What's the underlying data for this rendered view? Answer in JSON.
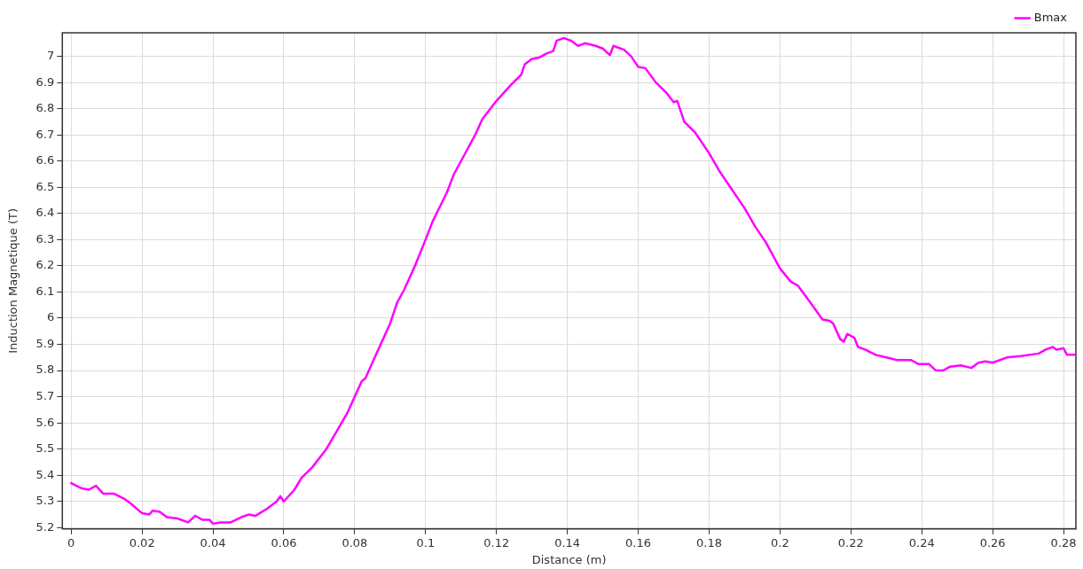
{
  "chart_data": {
    "type": "line",
    "xlabel": "Distance (m)",
    "ylabel": "Induction Magnetique (T)",
    "legend": "top right",
    "grid": true,
    "marker": "none",
    "line_style": "solid",
    "xlim": [
      -0.0025,
      0.2835
    ],
    "ylim": [
      5.195,
      7.09
    ],
    "xticks": [
      0,
      0.02,
      0.04,
      0.06,
      0.08,
      0.1,
      0.12,
      0.14,
      0.16,
      0.18,
      0.2,
      0.22,
      0.24,
      0.26,
      0.28
    ],
    "yticks": [
      5.2,
      5.3,
      5.4,
      5.5,
      5.6,
      5.7,
      5.8,
      5.9,
      6,
      6.1,
      6.2,
      6.3,
      6.4,
      6.5,
      6.6,
      6.7,
      6.8,
      6.9,
      7
    ],
    "x": [
      0,
      0.003,
      0.005,
      0.007,
      0.009,
      0.012,
      0.015,
      0.017,
      0.02,
      0.022,
      0.023,
      0.025,
      0.027,
      0.03,
      0.033,
      0.035,
      0.037,
      0.039,
      0.04,
      0.042,
      0.045,
      0.048,
      0.05,
      0.052,
      0.055,
      0.058,
      0.059,
      0.06,
      0.063,
      0.065,
      0.068,
      0.072,
      0.075,
      0.078,
      0.08,
      0.082,
      0.083,
      0.086,
      0.088,
      0.09,
      0.092,
      0.094,
      0.097,
      0.1,
      0.102,
      0.106,
      0.108,
      0.11,
      0.114,
      0.116,
      0.12,
      0.124,
      0.127,
      0.128,
      0.13,
      0.132,
      0.134,
      0.136,
      0.137,
      0.139,
      0.141,
      0.143,
      0.145,
      0.148,
      0.15,
      0.152,
      0.153,
      0.156,
      0.158,
      0.16,
      0.162,
      0.165,
      0.168,
      0.17,
      0.171,
      0.173,
      0.176,
      0.18,
      0.183,
      0.186,
      0.19,
      0.193,
      0.196,
      0.2,
      0.203,
      0.205,
      0.208,
      0.212,
      0.214,
      0.215,
      0.217,
      0.218,
      0.219,
      0.221,
      0.222,
      0.224,
      0.227,
      0.23,
      0.233,
      0.237,
      0.239,
      0.242,
      0.244,
      0.246,
      0.248,
      0.251,
      0.254,
      0.256,
      0.258,
      0.26,
      0.264,
      0.268,
      0.273,
      0.275,
      0.277,
      0.278,
      0.28,
      0.281,
      0.283
    ],
    "series": [
      {
        "name": "Bmax",
        "color": "#ff00ff",
        "values": [
          5.37,
          5.35,
          5.345,
          5.36,
          5.33,
          5.33,
          5.31,
          5.29,
          5.255,
          5.25,
          5.265,
          5.26,
          5.24,
          5.235,
          5.22,
          5.245,
          5.23,
          5.23,
          5.215,
          5.22,
          5.22,
          5.24,
          5.25,
          5.245,
          5.27,
          5.3,
          5.32,
          5.3,
          5.345,
          5.39,
          5.43,
          5.5,
          5.57,
          5.64,
          5.7,
          5.76,
          5.77,
          5.86,
          5.92,
          5.98,
          6.06,
          6.11,
          6.2,
          6.3,
          6.37,
          6.48,
          6.55,
          6.6,
          6.7,
          6.76,
          6.83,
          6.89,
          6.93,
          6.97,
          6.99,
          6.995,
          7.01,
          7.02,
          7.06,
          7.07,
          7.06,
          7.04,
          7.05,
          7.04,
          7.03,
          7.005,
          7.04,
          7.025,
          7,
          6.96,
          6.955,
          6.9,
          6.86,
          6.825,
          6.83,
          6.75,
          6.71,
          6.63,
          6.56,
          6.5,
          6.42,
          6.35,
          6.29,
          6.19,
          6.14,
          6.125,
          6.07,
          5.995,
          5.99,
          5.98,
          5.92,
          5.91,
          5.94,
          5.925,
          5.89,
          5.88,
          5.86,
          5.85,
          5.84,
          5.84,
          5.825,
          5.825,
          5.8,
          5.8,
          5.815,
          5.82,
          5.81,
          5.83,
          5.835,
          5.83,
          5.85,
          5.855,
          5.865,
          5.88,
          5.89,
          5.88,
          5.885,
          5.86,
          5.86
        ]
      }
    ]
  }
}
